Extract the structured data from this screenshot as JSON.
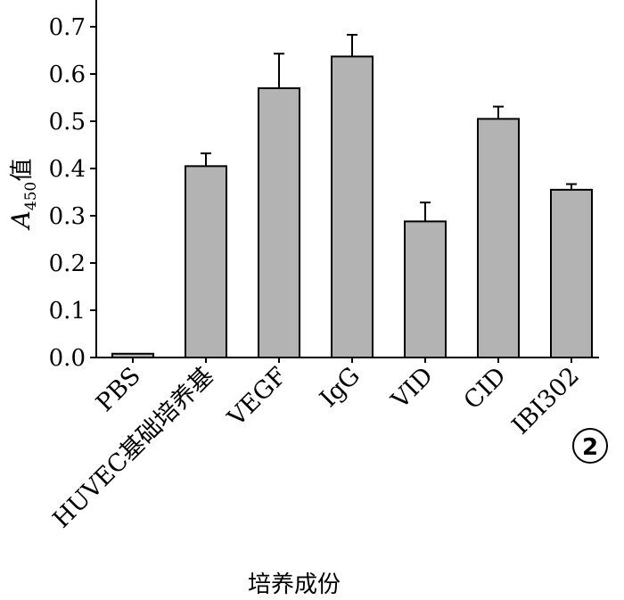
{
  "chart_data": {
    "type": "bar",
    "categories": [
      "PBS",
      "HUVEC基础培养基",
      "VEGF",
      "IgG",
      "VID",
      "CID",
      "IBI302"
    ],
    "values": [
      0.008,
      0.405,
      0.57,
      0.637,
      0.288,
      0.505,
      0.355
    ],
    "errors": [
      0.0,
      0.027,
      0.073,
      0.046,
      0.04,
      0.026,
      0.012
    ],
    "xlabel": "培养成份",
    "ylabel": {
      "main": "A",
      "subscript": "450",
      "suffix": "值"
    },
    "ylim": [
      0,
      0.75
    ],
    "yticks": [
      "0.0",
      "0.1",
      "0.2",
      "0.3",
      "0.4",
      "0.5",
      "0.6",
      "0.7"
    ],
    "bar_color": "#b3b3b3",
    "grid": false,
    "panel_label": "2"
  }
}
